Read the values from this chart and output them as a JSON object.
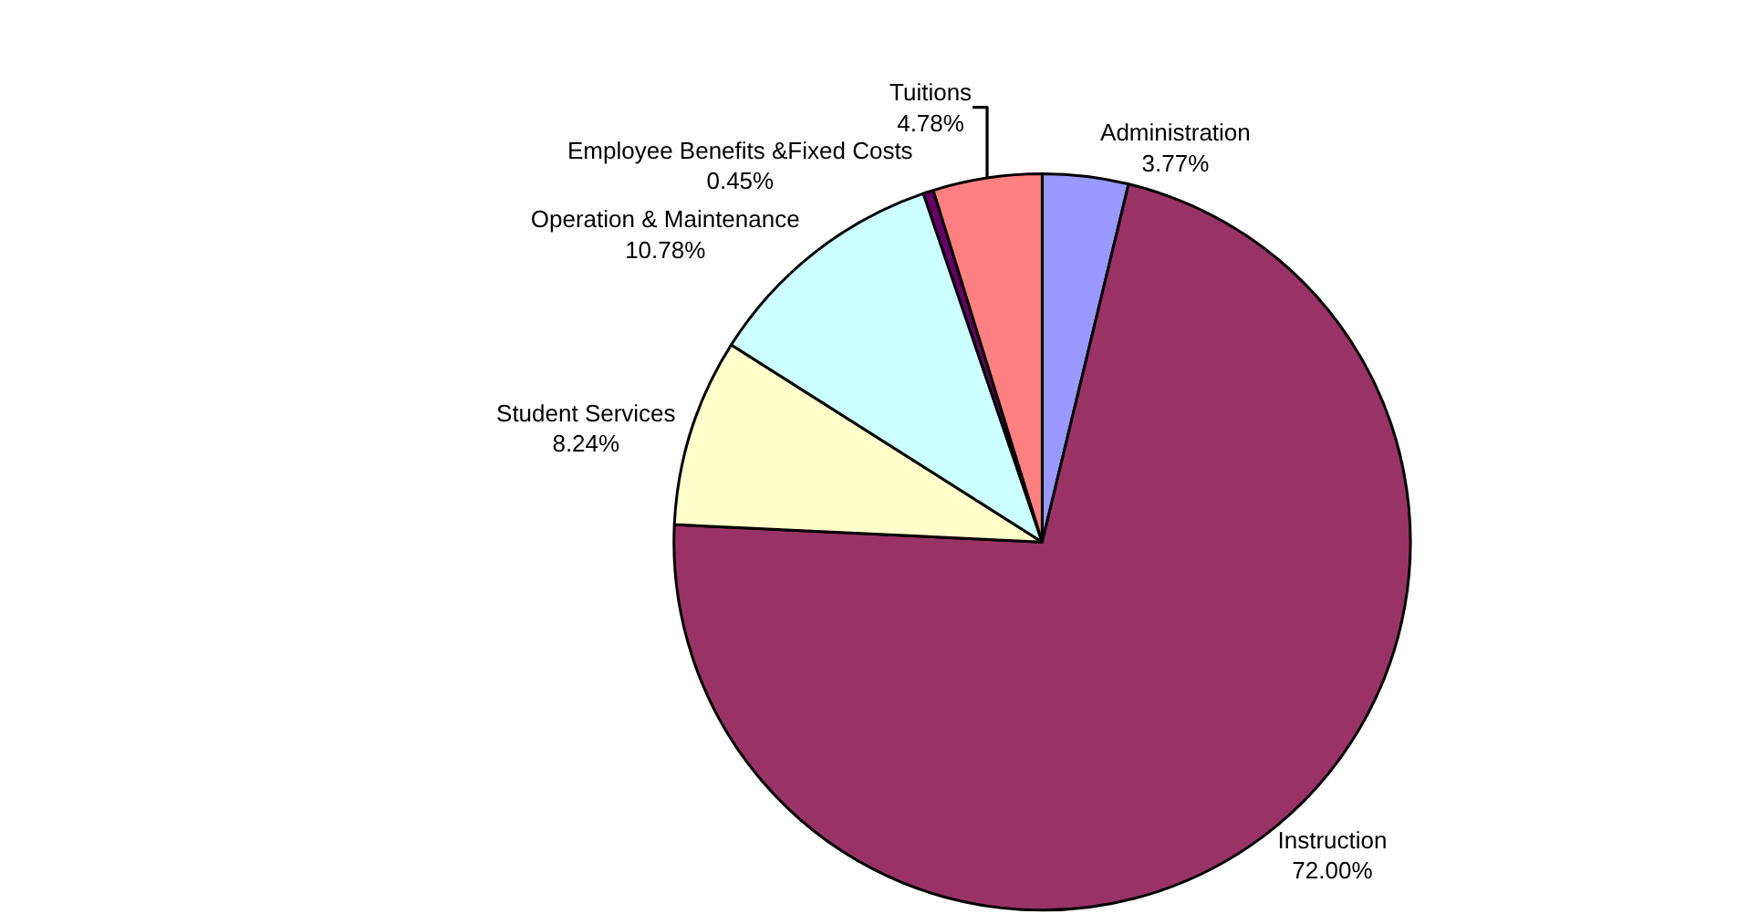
{
  "chart_data": {
    "type": "pie",
    "categories": [
      "Administration",
      "Instruction",
      "Student Services",
      "Operation & Maintenance",
      "Employee Benefits &Fixed Costs",
      "Tuitions"
    ],
    "values": [
      3.77,
      72.0,
      8.24,
      10.78,
      0.45,
      4.78
    ],
    "value_labels": [
      "3.77%",
      "72.00%",
      "8.24%",
      "10.78%",
      "0.45%",
      "4.78%"
    ],
    "colors": [
      "#9999ff",
      "#993366",
      "#ffffcc",
      "#ccffff",
      "#660066",
      "#ff8080"
    ],
    "legend": false
  }
}
